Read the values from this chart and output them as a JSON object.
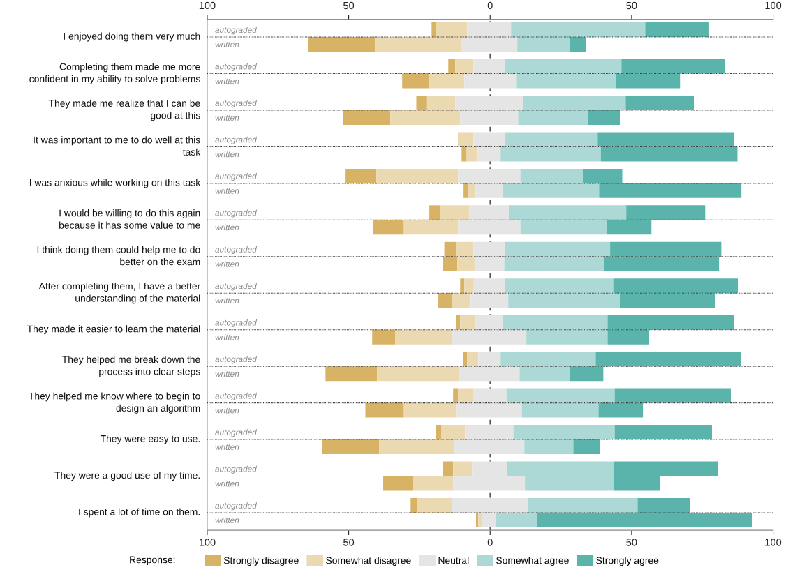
{
  "chart_data": {
    "type": "bar",
    "orientation": "horizontal",
    "categories": [
      "autograded",
      "written",
      "autograded",
      "written",
      "autograded",
      "written",
      "autograded",
      "written",
      "autograded",
      "written",
      "autograded",
      "written",
      "autograded",
      "written",
      "autograded",
      "written",
      "autograded",
      "written",
      "autograded",
      "written",
      "autograded",
      "written",
      "autograded",
      "written",
      "autograded",
      "written",
      "autograded",
      "written"
    ],
    "annotations": [
      "I enjoyed doing them very much",
      "Completing them made me more\nconfident in my ability to solve problems",
      "They made me realize that I can be\ngood at this",
      "It was important to me to do well at this\ntask",
      "I was anxious while working on this task",
      "I would be willing to do this again\nbecause it has some value to me",
      "I think doing them could help me to do\nbetter on the exam",
      "After completing them, I have a better\nunderstanding of the material",
      "They made it easier to learn the material",
      "They helped me break down the\nprocess into clear steps",
      "They helped me know where to begin to\ndesign an algorithm",
      "They were easy to use.",
      "They were a good use of my time.",
      "I spent a lot of time on them."
    ],
    "series": [
      {
        "name": "Strongly disagree",
        "color": "#d8b365",
        "base": [
          -20.7,
          -64.4,
          -14.8,
          -31.1,
          -26.1,
          -51.9,
          -11.3,
          -10.1,
          -51.1,
          -9.4,
          -21.5,
          -41.5,
          -16.2,
          -16.7,
          -10.6,
          -18.3,
          -12.1,
          -41.7,
          -9.6,
          -58.2,
          -13.1,
          -44.1,
          -19.2,
          -59.5,
          -16.7,
          -37.8,
          -28.1,
          -5.0
        ],
        "values": [
          1.5,
          23.7,
          2.5,
          9.6,
          3.8,
          16.6,
          0.5,
          1.8,
          10.9,
          1.7,
          3.7,
          11.0,
          4.4,
          5.1,
          1.5,
          4.8,
          1.5,
          8.2,
          1.5,
          18.2,
          1.8,
          13.6,
          2.0,
          20.3,
          3.6,
          10.6,
          2.2,
          0.8
        ]
      },
      {
        "name": "Somewhat disagree",
        "color": "#ebd9b2",
        "base": [
          -19.2,
          -40.7,
          -12.3,
          -21.5,
          -22.3,
          -35.3,
          -10.8,
          -8.3,
          -40.2,
          -7.7,
          -17.8,
          -30.5,
          -11.8,
          -11.6,
          -9.1,
          -13.5,
          -10.6,
          -33.5,
          -8.1,
          -40.0,
          -11.3,
          -30.5,
          -17.2,
          -39.2,
          -13.1,
          -27.2,
          -25.9,
          -4.2
        ],
        "values": [
          11.1,
          30.3,
          6.4,
          12.4,
          10.0,
          24.7,
          4.9,
          3.9,
          28.9,
          2.6,
          10.4,
          19.2,
          5.9,
          6.1,
          3.3,
          6.6,
          5.4,
          19.9,
          3.9,
          29.0,
          5.2,
          18.7,
          8.4,
          26.6,
          6.7,
          14.1,
          12.3,
          1.3
        ]
      },
      {
        "name": "Neutral",
        "color": "#e5e5e5",
        "base": [
          -8.1,
          -10.4,
          -5.9,
          -9.1,
          -12.3,
          -10.6,
          -5.9,
          -4.4,
          -11.3,
          -5.1,
          -7.4,
          -11.3,
          -5.9,
          -5.5,
          -5.8,
          -6.9,
          -5.2,
          -13.6,
          -4.2,
          -11.0,
          -6.1,
          -11.8,
          -8.8,
          -12.6,
          -6.4,
          -13.1,
          -13.6,
          -2.9
        ],
        "values": [
          15.5,
          20.0,
          11.1,
          18.5,
          24.0,
          20.5,
          11.3,
          8.1,
          22.0,
          9.6,
          14.0,
          22.0,
          11.1,
          10.5,
          11.0,
          13.3,
          9.7,
          26.4,
          7.9,
          21.4,
          11.9,
          23.0,
          17.0,
          24.7,
          12.5,
          25.4,
          27.0,
          4.9
        ]
      },
      {
        "name": "Somewhat agree",
        "color": "#acd9d5",
        "base": [
          7.4,
          9.6,
          5.2,
          9.4,
          11.7,
          9.9,
          5.4,
          3.7,
          10.7,
          4.5,
          6.6,
          10.7,
          5.2,
          5.0,
          5.2,
          6.4,
          4.5,
          12.8,
          3.7,
          10.4,
          5.8,
          11.2,
          8.2,
          12.1,
          6.1,
          12.3,
          13.4,
          2.0
        ],
        "values": [
          47.4,
          18.6,
          41.2,
          35.2,
          36.2,
          24.6,
          32.6,
          35.4,
          22.3,
          34.0,
          41.5,
          30.6,
          37.2,
          35.2,
          38.3,
          39.5,
          37.0,
          28.7,
          33.6,
          17.8,
          38.2,
          27.1,
          35.8,
          17.3,
          37.6,
          31.4,
          38.7,
          14.6
        ]
      },
      {
        "name": "Strongly agree",
        "color": "#5ab4ac",
        "base": [
          54.8,
          28.2,
          46.4,
          44.6,
          47.9,
          34.5,
          38.0,
          39.1,
          33.0,
          38.5,
          48.1,
          41.3,
          42.4,
          40.2,
          43.5,
          45.9,
          41.5,
          41.5,
          37.3,
          28.2,
          44.0,
          38.3,
          44.0,
          29.4,
          43.7,
          43.7,
          52.1,
          16.6
        ],
        "values": [
          22.6,
          5.6,
          36.7,
          22.5,
          24.1,
          11.4,
          48.3,
          48.3,
          13.7,
          50.3,
          27.9,
          15.7,
          39.3,
          40.7,
          44.1,
          33.6,
          44.6,
          14.7,
          51.4,
          11.8,
          41.2,
          15.7,
          34.4,
          9.5,
          36.9,
          16.4,
          18.5,
          75.9
        ]
      }
    ],
    "xlim": [
      -100,
      100
    ],
    "xticks": [
      {
        "value": -100,
        "label": "100"
      },
      {
        "value": -50,
        "label": "50"
      },
      0,
      50,
      100
    ],
    "x2lim": [
      -100,
      100
    ],
    "x2ticks": [
      {
        "value": -100,
        "label": "100"
      },
      {
        "value": -50,
        "label": "50"
      },
      0,
      50,
      100
    ],
    "ref_lines": [
      {
        "axis": "x",
        "value": 0,
        "color": "#555555",
        "line_style": "dashed"
      }
    ],
    "legend": "bottom",
    "legend_title": "Response:",
    "grid": "y"
  }
}
